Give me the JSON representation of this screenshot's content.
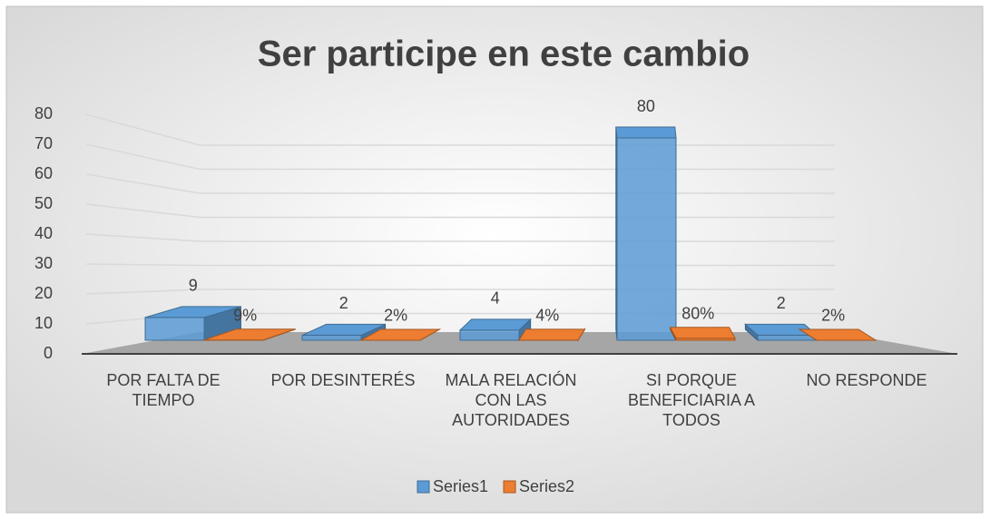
{
  "chart_data": {
    "type": "bar3d",
    "title": "Ser participe en este cambio",
    "categories": [
      "POR FALTA DE TIEMPO",
      "POR DESINTERÉS",
      "MALA RELACIÓN CON LAS AUTORIDADES",
      "SI PORQUE BENEFICIARIA A TODOS",
      "NO RESPONDE"
    ],
    "series": [
      {
        "name": "Series1",
        "color": "#5b9bd5",
        "values": [
          9,
          2,
          4,
          80,
          2
        ]
      },
      {
        "name": "Series2",
        "color": "#ed7d31",
        "values": [
          0.09,
          0.02,
          0.04,
          0.8,
          0.02
        ],
        "value_labels": [
          "9%",
          "2%",
          "4%",
          "80%",
          "2%"
        ]
      }
    ],
    "ylim": [
      0,
      80
    ],
    "yticks": [
      0,
      10,
      20,
      30,
      40,
      50,
      60,
      70,
      80
    ],
    "grid": true,
    "legend": "bottom"
  }
}
